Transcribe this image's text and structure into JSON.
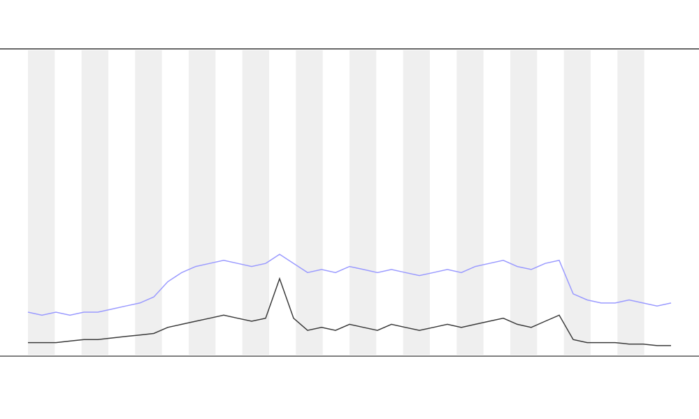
{
  "chart_data": {
    "type": "line",
    "x": [
      0,
      1,
      2,
      3,
      4,
      5,
      6,
      7,
      8,
      9,
      10,
      11,
      12,
      13,
      14,
      15,
      16,
      17,
      18,
      19,
      20,
      21,
      22,
      23,
      24,
      25,
      26,
      27,
      28,
      29,
      30,
      31,
      32,
      33,
      34,
      35,
      36,
      37,
      38,
      39,
      40,
      41,
      42,
      43,
      44,
      45,
      46
    ],
    "xlim": [
      0,
      46
    ],
    "ylim": [
      0,
      100
    ],
    "series": [
      {
        "color": "#3a3a3a",
        "values": [
          4,
          4,
          4,
          4.5,
          5,
          5,
          5.5,
          6,
          6.5,
          7,
          9,
          10,
          11,
          12,
          13,
          12,
          11,
          12,
          25,
          12,
          8,
          9,
          8,
          10,
          9,
          8,
          10,
          9,
          8,
          9,
          10,
          9,
          10,
          11,
          12,
          10,
          9,
          11,
          13,
          5,
          4,
          4,
          4,
          3.5,
          3.5,
          3,
          3
        ]
      },
      {
        "color": "#9a9aff",
        "values": [
          14,
          13,
          14,
          13,
          14,
          14,
          15,
          16,
          17,
          19,
          24,
          27,
          29,
          30,
          31,
          30,
          29,
          30,
          33,
          30,
          27,
          28,
          27,
          29,
          28,
          27,
          28,
          27,
          26,
          27,
          28,
          27,
          29,
          30,
          31,
          29,
          28,
          30,
          31,
          20,
          18,
          17,
          17,
          18,
          17,
          16,
          17
        ]
      }
    ],
    "grid": true
  }
}
